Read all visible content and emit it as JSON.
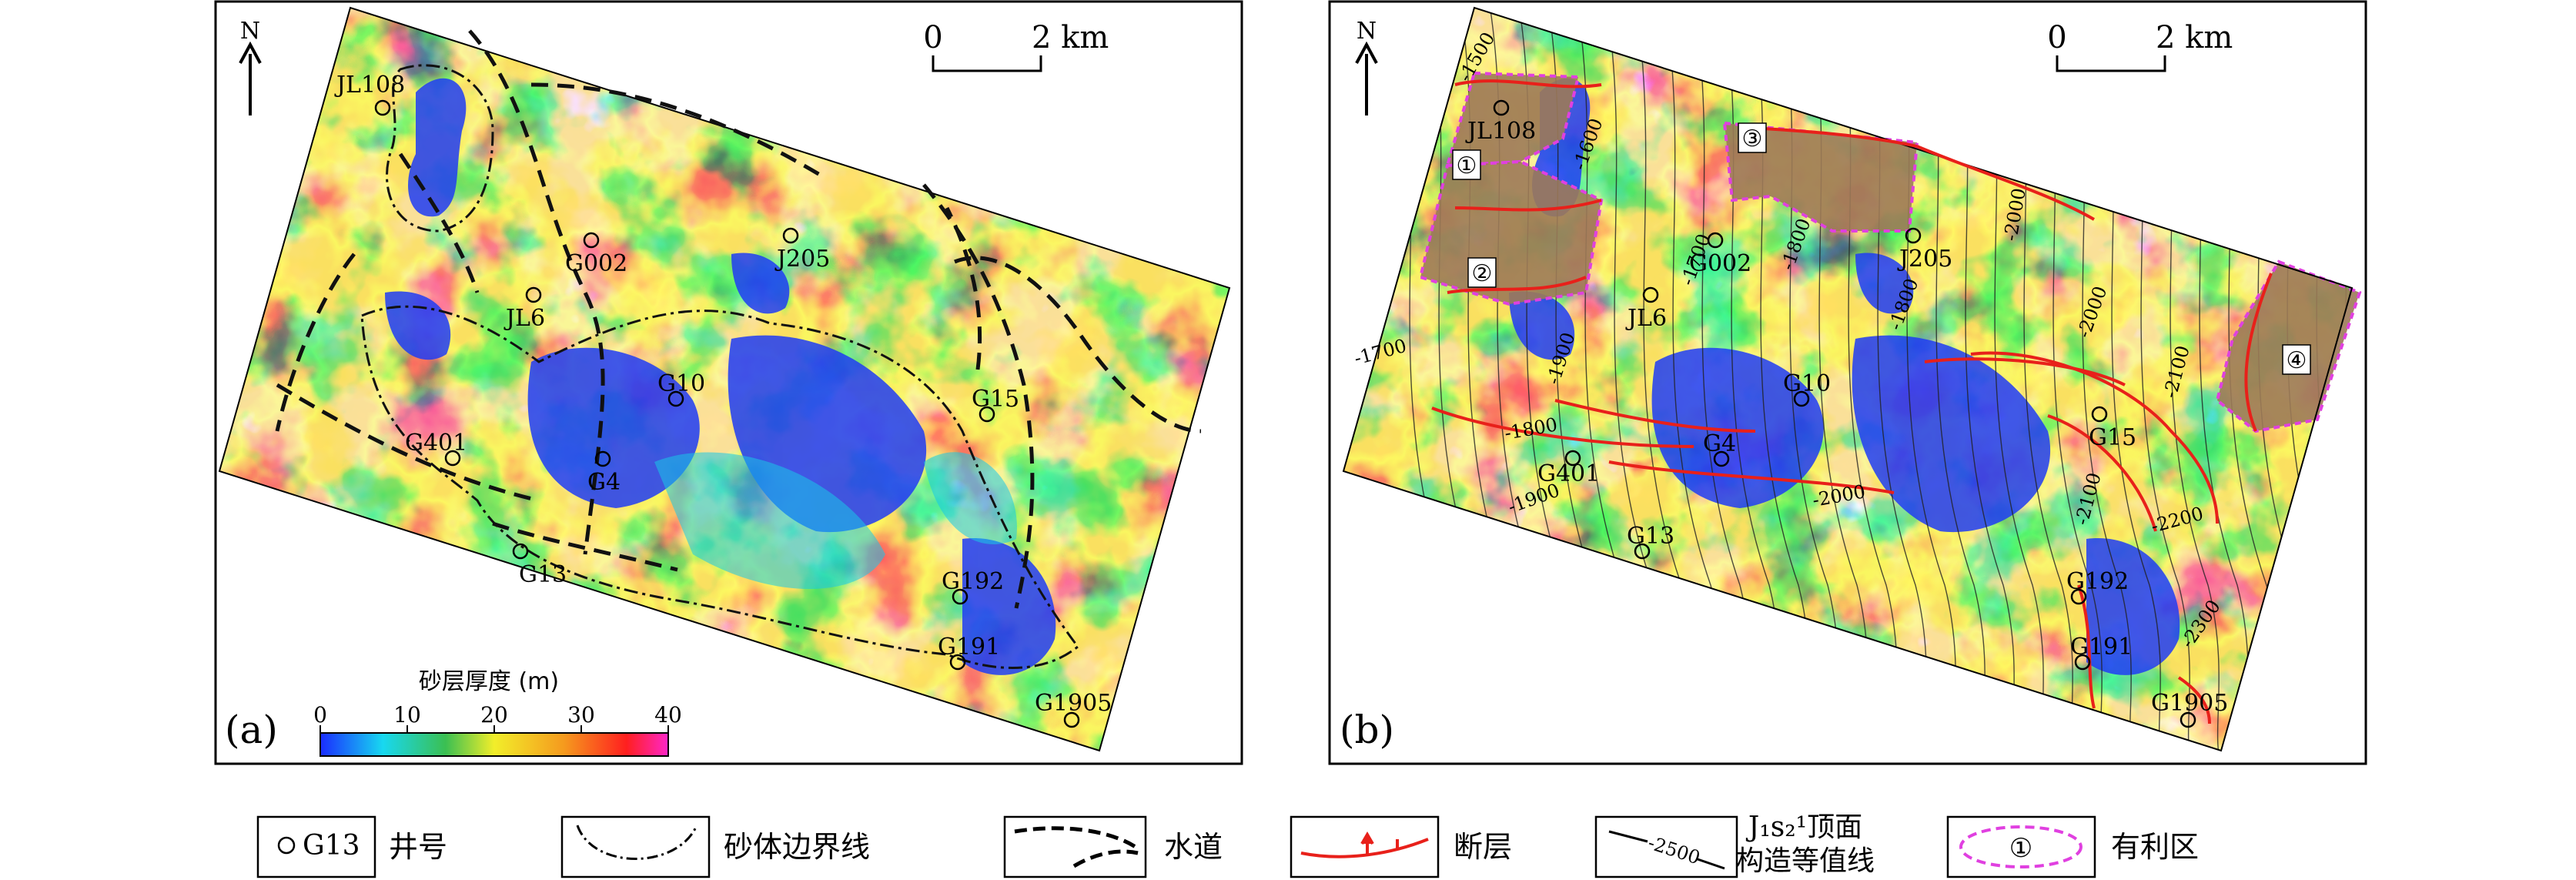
{
  "panel_a": {
    "label": "(a)",
    "north": "N",
    "scale": {
      "start": "0",
      "end": "2 km"
    },
    "colorbar": {
      "title": "砂层厚度 (m)",
      "ticks": [
        "0",
        "10",
        "20",
        "30",
        "40"
      ],
      "range": [
        0,
        40
      ],
      "colors": [
        "#1a2cff",
        "#18d8f0",
        "#3bbf52",
        "#f2ee2a",
        "#f59a1e",
        "#ff1f1f",
        "#ff27c8"
      ]
    },
    "wells": [
      {
        "name": "JL108"
      },
      {
        "name": "G002"
      },
      {
        "name": "J205"
      },
      {
        "name": "JL6"
      },
      {
        "name": "G10"
      },
      {
        "name": "G15"
      },
      {
        "name": "G401"
      },
      {
        "name": "G4"
      },
      {
        "name": "G13"
      },
      {
        "name": "G192"
      },
      {
        "name": "G191"
      },
      {
        "name": "G1905"
      }
    ]
  },
  "panel_b": {
    "label": "(b)",
    "north": "N",
    "scale": {
      "start": "0",
      "end": "2 km"
    },
    "wells": [
      {
        "name": "JL108"
      },
      {
        "name": "G002"
      },
      {
        "name": "J205"
      },
      {
        "name": "JL6"
      },
      {
        "name": "G10"
      },
      {
        "name": "G4"
      },
      {
        "name": "G401"
      },
      {
        "name": "G13"
      },
      {
        "name": "G15"
      },
      {
        "name": "G192"
      },
      {
        "name": "G191"
      },
      {
        "name": "G1905"
      }
    ],
    "contour_labels": [
      "-1500",
      "-1600",
      "-1700",
      "-1800",
      "-1700",
      "-1800",
      "-1800",
      "-1900",
      "-1900",
      "-2000",
      "-2000",
      "-2000",
      "-2100",
      "-2100",
      "-2200",
      "-2300"
    ],
    "zones": [
      "①",
      "②",
      "③",
      "④"
    ]
  },
  "legend": [
    {
      "symbol": "well",
      "sample": "G13",
      "label": "井号"
    },
    {
      "symbol": "sand-boundary",
      "label": "砂体边界线"
    },
    {
      "symbol": "channel",
      "label": "水道"
    },
    {
      "symbol": "fault",
      "label": "断层"
    },
    {
      "symbol": "contour",
      "sample": "-2500",
      "label_line1": "J₁s₂¹顶面",
      "label_line2": "构造等值线"
    },
    {
      "symbol": "favorable-zone",
      "sample": "①",
      "label": "有利区"
    }
  ]
}
